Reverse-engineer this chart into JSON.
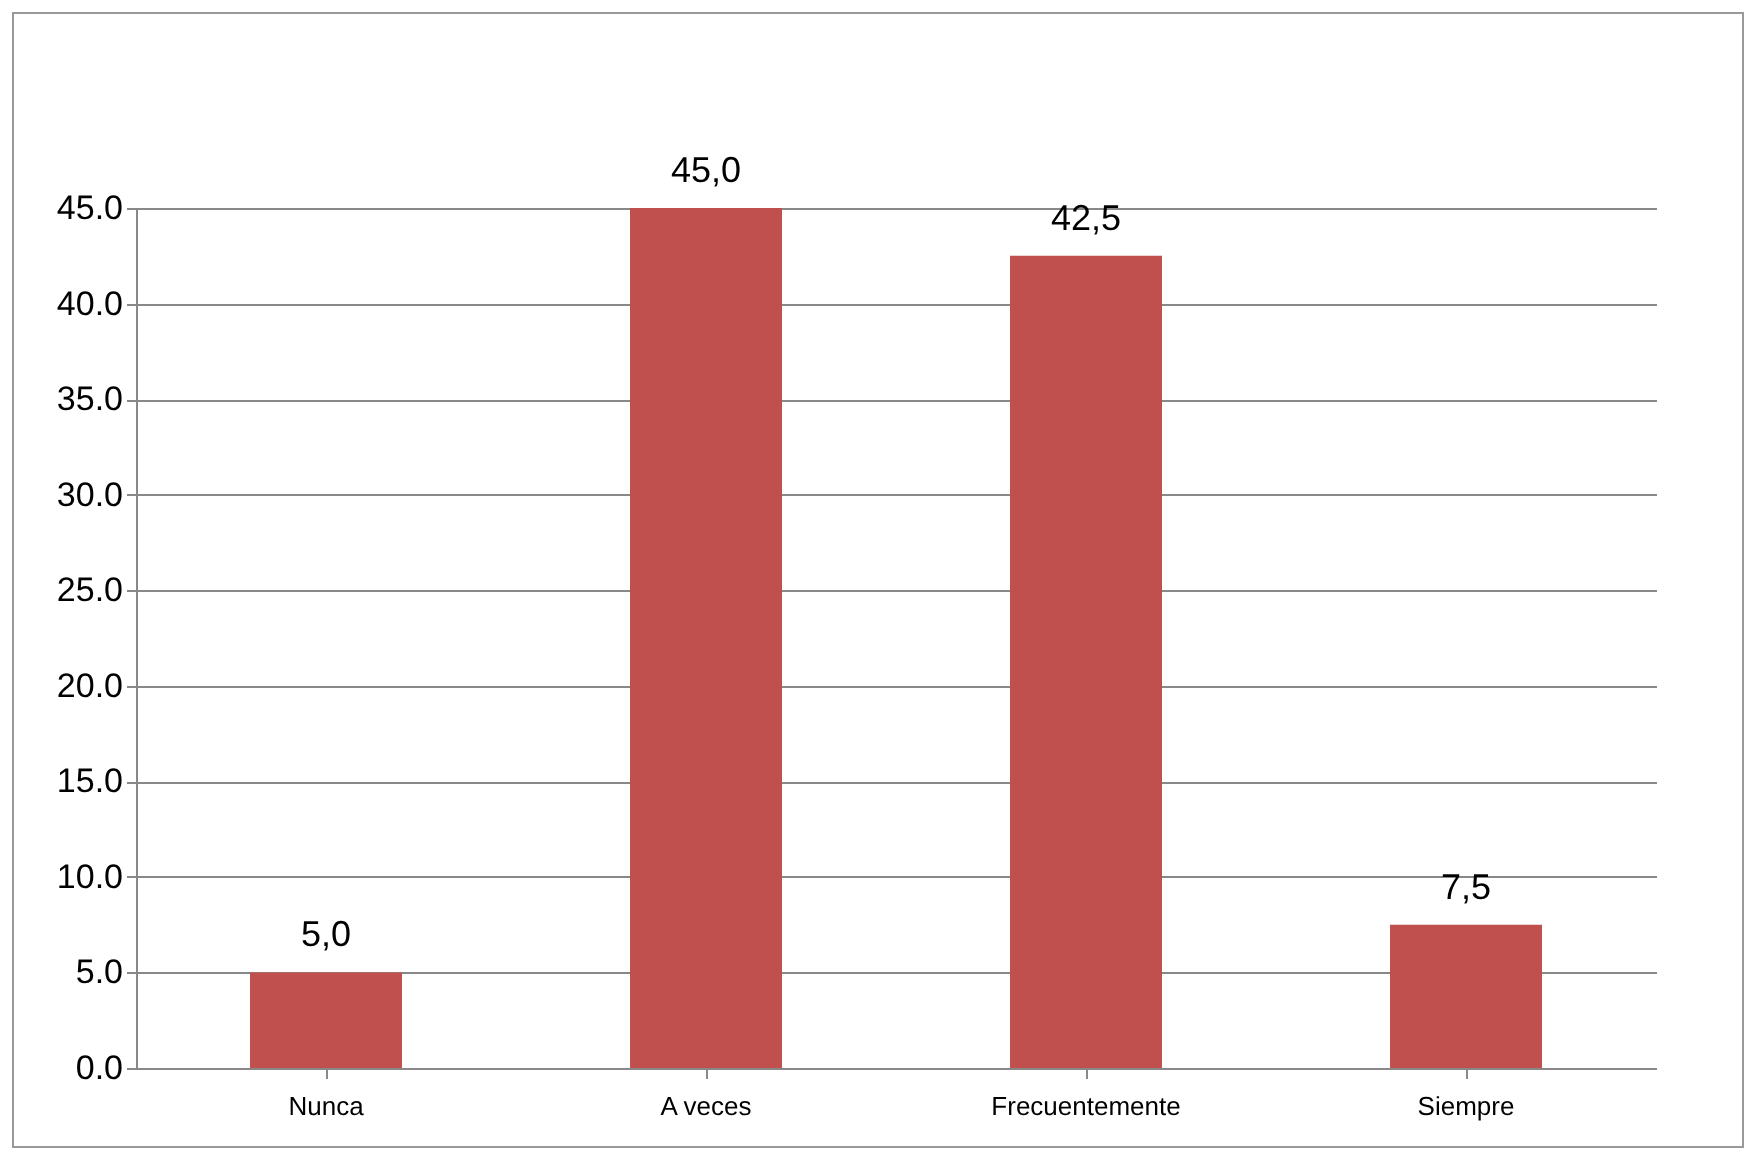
{
  "chart_data": {
    "type": "bar",
    "categories": [
      "Nunca",
      "A veces",
      "Frecuentemente",
      "Siempre"
    ],
    "values": [
      5.0,
      45.0,
      42.5,
      7.5
    ],
    "value_labels": [
      "5,0",
      "45,0",
      "42,5",
      "7,5"
    ],
    "color": "#c0504d",
    "ylim": [
      0,
      45
    ],
    "yticks": [
      {
        "value": 0,
        "label": "0.0"
      },
      {
        "value": 5,
        "label": "5.0"
      },
      {
        "value": 10,
        "label": "10.0"
      },
      {
        "value": 15,
        "label": "15.0"
      },
      {
        "value": 20,
        "label": "20.0"
      },
      {
        "value": 25,
        "label": "25.0"
      },
      {
        "value": 30,
        "label": "30.0"
      },
      {
        "value": 35,
        "label": "35.0"
      },
      {
        "value": 40,
        "label": "40.0"
      },
      {
        "value": 45,
        "label": "45.0"
      }
    ],
    "grid": "y"
  }
}
